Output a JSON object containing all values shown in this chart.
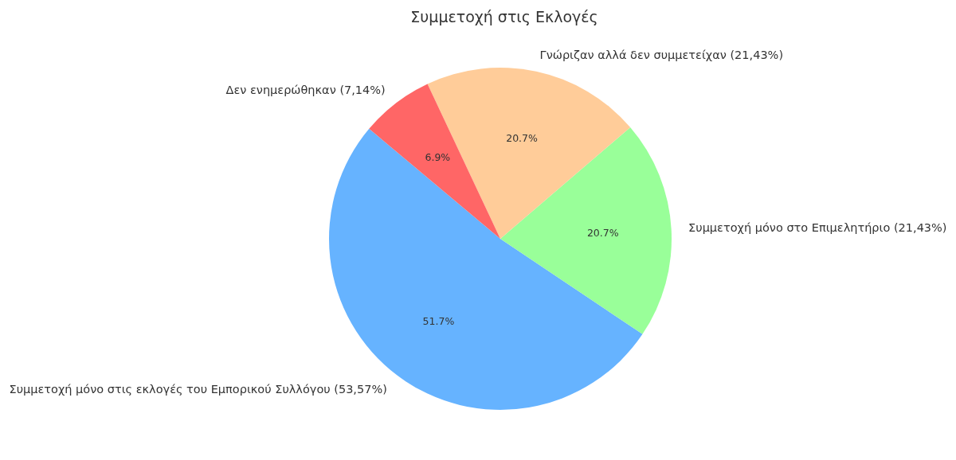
{
  "chart_data": {
    "type": "pie",
    "title": "Συμμετοχή στις Εκλογές",
    "categories": [
      "Συμμετοχή μόνο στις εκλογές του Εμπορικού Συλλόγου (53,57%)",
      "Συμμετοχή μόνο στο Επιμελητήριο (21,43%)",
      "Γνώριζαν αλλά δεν συμμετείχαν (21,43%)",
      "Δεν ενημερώθηκαν (7,14%)"
    ],
    "values": [
      51.7,
      20.7,
      20.7,
      6.9
    ],
    "colors": [
      "#66b3ff",
      "#99ff99",
      "#ffcc99",
      "#ff6666"
    ],
    "value_labels": [
      "51.7%",
      "20.7%",
      "20.7%",
      "6.9%"
    ]
  }
}
